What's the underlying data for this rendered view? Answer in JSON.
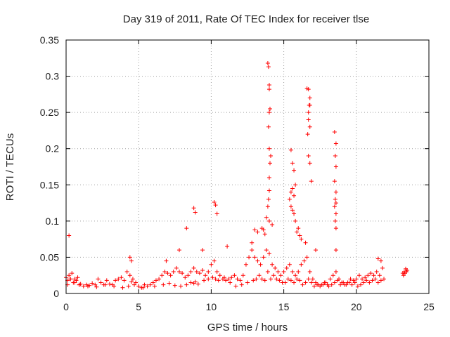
{
  "chart_data": {
    "type": "scatter",
    "title": "Day 319 of 2011, Rate Of TEC Index for receiver tlse",
    "xlabel": "GPS time / hours",
    "ylabel": "ROTI / TECUs",
    "xlim": [
      0,
      25
    ],
    "ylim": [
      0,
      0.35
    ],
    "xticks": [
      0,
      5,
      10,
      15,
      20,
      25
    ],
    "xtick_labels": [
      "0",
      "5",
      "10",
      "15",
      "20",
      "25"
    ],
    "yticks": [
      0,
      0.05,
      0.1,
      0.15,
      0.2,
      0.25,
      0.3,
      0.35
    ],
    "ytick_labels": [
      "0",
      "0.05",
      "0.1",
      "0.15",
      "0.2",
      "0.25",
      "0.3",
      "0.35"
    ],
    "grid": true,
    "marker": "+",
    "marker_color": "#ff0000",
    "series": [
      {
        "x": [
          0.0,
          0.1,
          0.2,
          0.3,
          0.4,
          0.5,
          0.6,
          0.7,
          0.8,
          0.9,
          1.0,
          1.2,
          1.4,
          1.6,
          1.8,
          2.0,
          2.2,
          2.4,
          2.6,
          2.8,
          3.0,
          3.2,
          3.4,
          3.6,
          3.8,
          4.0,
          4.2,
          4.4,
          4.6,
          4.8,
          5.0,
          5.2,
          5.4,
          5.6,
          5.8,
          6.0,
          6.2,
          6.4,
          6.6,
          6.8,
          7.0,
          7.2,
          7.4,
          7.6,
          7.8,
          8.0,
          8.2,
          8.4,
          8.6,
          8.8,
          9.0,
          9.2,
          9.4,
          9.6,
          9.8,
          10.0,
          10.2,
          10.4,
          10.6,
          10.8,
          11.0,
          11.2,
          11.4,
          11.6,
          11.8,
          12.0,
          12.2,
          12.4,
          12.6,
          12.8,
          13.0,
          13.2,
          13.4,
          13.6,
          13.8,
          14.0,
          14.2,
          14.4,
          14.6,
          14.8,
          15.0,
          15.2,
          15.4,
          15.6,
          15.8,
          16.0,
          16.2,
          16.4,
          16.6,
          16.8,
          17.0,
          17.2,
          17.4,
          17.6,
          17.8,
          18.0,
          18.2,
          18.4,
          18.6,
          18.8,
          19.0,
          19.2,
          19.4,
          19.6,
          19.8,
          20.0,
          20.2,
          20.4,
          20.6,
          20.8,
          21.0,
          21.2,
          21.4,
          21.6,
          21.8,
          23.2,
          23.3,
          23.4,
          23.5,
          0.1,
          0.3,
          0.6,
          0.9,
          1.5,
          2.1,
          2.7,
          3.3,
          3.9,
          4.3,
          4.5,
          4.7,
          5.3,
          6.1,
          6.7,
          7.1,
          7.5,
          7.9,
          8.3,
          8.6,
          8.8,
          8.9,
          9.1,
          9.5,
          9.8,
          10.1,
          10.3,
          10.5,
          10.9,
          11.3,
          11.7,
          12.1,
          12.5,
          12.9,
          13.1,
          13.3,
          13.5,
          13.7,
          13.9,
          14.1,
          14.3,
          14.5,
          14.7,
          14.9,
          15.1,
          15.3,
          15.5,
          15.7,
          15.9,
          16.1,
          16.3,
          16.5,
          16.7,
          16.9,
          17.1,
          17.3,
          17.5,
          17.7,
          17.9,
          18.1,
          18.3,
          18.5,
          18.7,
          18.9,
          19.1,
          19.3,
          19.5,
          19.7,
          19.9,
          20.1,
          20.3,
          20.5,
          20.7,
          20.9,
          21.1,
          21.3,
          21.5,
          21.7,
          21.9,
          23.25,
          23.35,
          23.45,
          0.2,
          4.4,
          4.5,
          8.8,
          8.9,
          10.2,
          10.3,
          10.4,
          13.0,
          13.2,
          13.5,
          13.8,
          13.9,
          13.95,
          14.0,
          14.0,
          14.05,
          14.1,
          14.0,
          13.95,
          14.0,
          14.05,
          14.0,
          14.0,
          13.95,
          13.9,
          14.0,
          15.5,
          15.6,
          15.7,
          15.8,
          15.5,
          15.6,
          15.7,
          15.4,
          15.5,
          15.6,
          15.7,
          15.8,
          16.0,
          16.1,
          16.6,
          16.7,
          16.8,
          16.75,
          16.7,
          16.8,
          16.65,
          16.7,
          16.8,
          16.9,
          16.7,
          16.8,
          18.5,
          18.6,
          18.55,
          18.6,
          18.5,
          18.6,
          18.55,
          18.6,
          18.5,
          18.6,
          18.55,
          18.6,
          18.6,
          21.5,
          21.7,
          13.6,
          13.7,
          14.2,
          15.9,
          16.2,
          16.5,
          17.2,
          12.8,
          11.1,
          9.4,
          7.8,
          6.9,
          8.3
        ],
        "y": [
          0.022,
          0.018,
          0.025,
          0.02,
          0.028,
          0.015,
          0.02,
          0.018,
          0.022,
          0.012,
          0.013,
          0.01,
          0.012,
          0.011,
          0.014,
          0.012,
          0.02,
          0.015,
          0.012,
          0.018,
          0.013,
          0.012,
          0.018,
          0.02,
          0.022,
          0.018,
          0.03,
          0.025,
          0.02,
          0.015,
          0.01,
          0.008,
          0.012,
          0.01,
          0.012,
          0.015,
          0.018,
          0.02,
          0.025,
          0.03,
          0.028,
          0.025,
          0.03,
          0.035,
          0.03,
          0.028,
          0.022,
          0.025,
          0.03,
          0.035,
          0.03,
          0.028,
          0.032,
          0.025,
          0.03,
          0.04,
          0.045,
          0.03,
          0.025,
          0.02,
          0.018,
          0.02,
          0.022,
          0.025,
          0.02,
          0.018,
          0.025,
          0.04,
          0.05,
          0.06,
          0.05,
          0.045,
          0.04,
          0.05,
          0.06,
          0.055,
          0.04,
          0.035,
          0.03,
          0.025,
          0.03,
          0.035,
          0.04,
          0.03,
          0.025,
          0.03,
          0.04,
          0.045,
          0.05,
          0.03,
          0.02,
          0.015,
          0.012,
          0.012,
          0.015,
          0.012,
          0.02,
          0.025,
          0.03,
          0.02,
          0.015,
          0.012,
          0.015,
          0.02,
          0.018,
          0.02,
          0.025,
          0.02,
          0.022,
          0.025,
          0.028,
          0.025,
          0.03,
          0.025,
          0.035,
          0.028,
          0.03,
          0.034,
          0.032,
          0.012,
          0.02,
          0.015,
          0.012,
          0.01,
          0.009,
          0.012,
          0.01,
          0.008,
          0.01,
          0.016,
          0.012,
          0.008,
          0.01,
          0.012,
          0.014,
          0.011,
          0.01,
          0.012,
          0.015,
          0.014,
          0.016,
          0.013,
          0.018,
          0.02,
          0.022,
          0.02,
          0.018,
          0.022,
          0.015,
          0.01,
          0.012,
          0.015,
          0.018,
          0.02,
          0.025,
          0.02,
          0.018,
          0.03,
          0.02,
          0.025,
          0.02,
          0.018,
          0.015,
          0.015,
          0.02,
          0.018,
          0.015,
          0.02,
          0.018,
          0.012,
          0.015,
          0.02,
          0.015,
          0.01,
          0.012,
          0.01,
          0.012,
          0.015,
          0.01,
          0.012,
          0.015,
          0.018,
          0.012,
          0.015,
          0.012,
          0.015,
          0.012,
          0.015,
          0.01,
          0.012,
          0.015,
          0.018,
          0.015,
          0.018,
          0.02,
          0.015,
          0.018,
          0.02,
          0.025,
          0.028,
          0.03,
          0.08,
          0.05,
          0.045,
          0.118,
          0.112,
          0.126,
          0.122,
          0.11,
          0.088,
          0.085,
          0.09,
          0.105,
          0.12,
          0.13,
          0.142,
          0.16,
          0.18,
          0.19,
          0.2,
          0.23,
          0.25,
          0.255,
          0.282,
          0.288,
          0.313,
          0.318,
          0.1,
          0.198,
          0.18,
          0.17,
          0.15,
          0.14,
          0.145,
          0.135,
          0.13,
          0.12,
          0.115,
          0.11,
          0.1,
          0.09,
          0.08,
          0.283,
          0.282,
          0.27,
          0.26,
          0.24,
          0.23,
          0.22,
          0.19,
          0.18,
          0.155,
          0.25,
          0.26,
          0.223,
          0.207,
          0.19,
          0.175,
          0.155,
          0.14,
          0.13,
          0.125,
          0.12,
          0.11,
          0.1,
          0.09,
          0.06,
          0.048,
          0.045,
          0.088,
          0.082,
          0.095,
          0.085,
          0.075,
          0.07,
          0.06,
          0.07,
          0.065,
          0.06,
          0.06,
          0.045,
          0.09
        ]
      }
    ]
  }
}
